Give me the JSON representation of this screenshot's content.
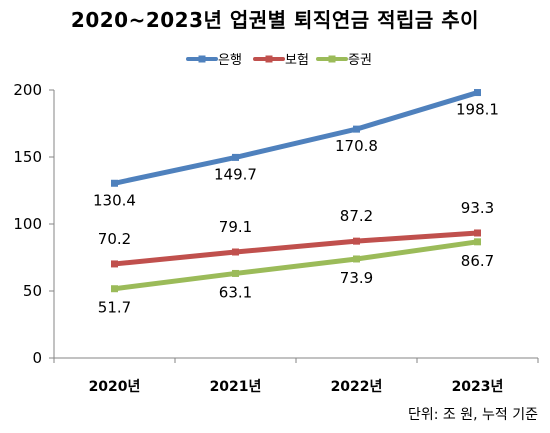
{
  "chart_data": {
    "type": "line",
    "title": "2020~2023년 업권별 퇴직연금 적립금 추이",
    "categories": [
      "2020년",
      "2021년",
      "2022년",
      "2023년"
    ],
    "series": [
      {
        "name": "은행",
        "color": "#4F81BD",
        "values": [
          130.4,
          149.7,
          170.8,
          198.1
        ],
        "labels": [
          "130.4",
          "149.7",
          "170.8",
          "198.1"
        ]
      },
      {
        "name": "보험",
        "color": "#C0504D",
        "values": [
          70.2,
          79.1,
          87.2,
          93.3
        ],
        "labels": [
          "70.2",
          "79.1",
          "87.2",
          "93.3"
        ]
      },
      {
        "name": "증권",
        "color": "#9BBB59",
        "values": [
          51.7,
          63.1,
          73.9,
          86.7
        ],
        "labels": [
          "51.7",
          "63.1",
          "73.9",
          "86.7"
        ]
      }
    ],
    "y_ticks": [
      0,
      50,
      100,
      150,
      200
    ],
    "ylim": [
      0,
      200
    ],
    "grid": false,
    "legend_position": "top",
    "note": "단위: 조 원, 누적 기준"
  }
}
